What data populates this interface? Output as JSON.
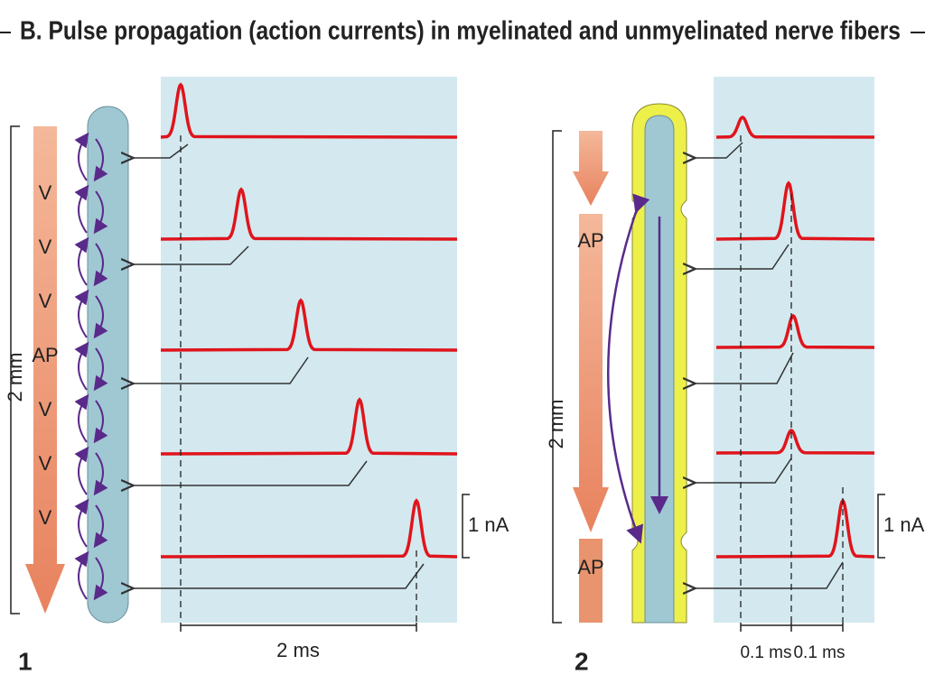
{
  "header": {
    "title": "B. Pulse propagation (action currents) in myelinated and unmyelinated nerve fibers"
  },
  "panel1": {
    "number": "1",
    "length_label": "2 mm",
    "markers": [
      "V",
      "V",
      "V",
      "AP",
      "V",
      "V",
      "V"
    ],
    "current_scale": "1 nA",
    "time_scale": "2 ms"
  },
  "panel2": {
    "number": "2",
    "length_label": "2 mm",
    "ap_labels": [
      "AP",
      "AP"
    ],
    "current_scale": "1 nA",
    "time_scales": [
      "0.1 ms",
      "0.1 ms"
    ]
  }
}
